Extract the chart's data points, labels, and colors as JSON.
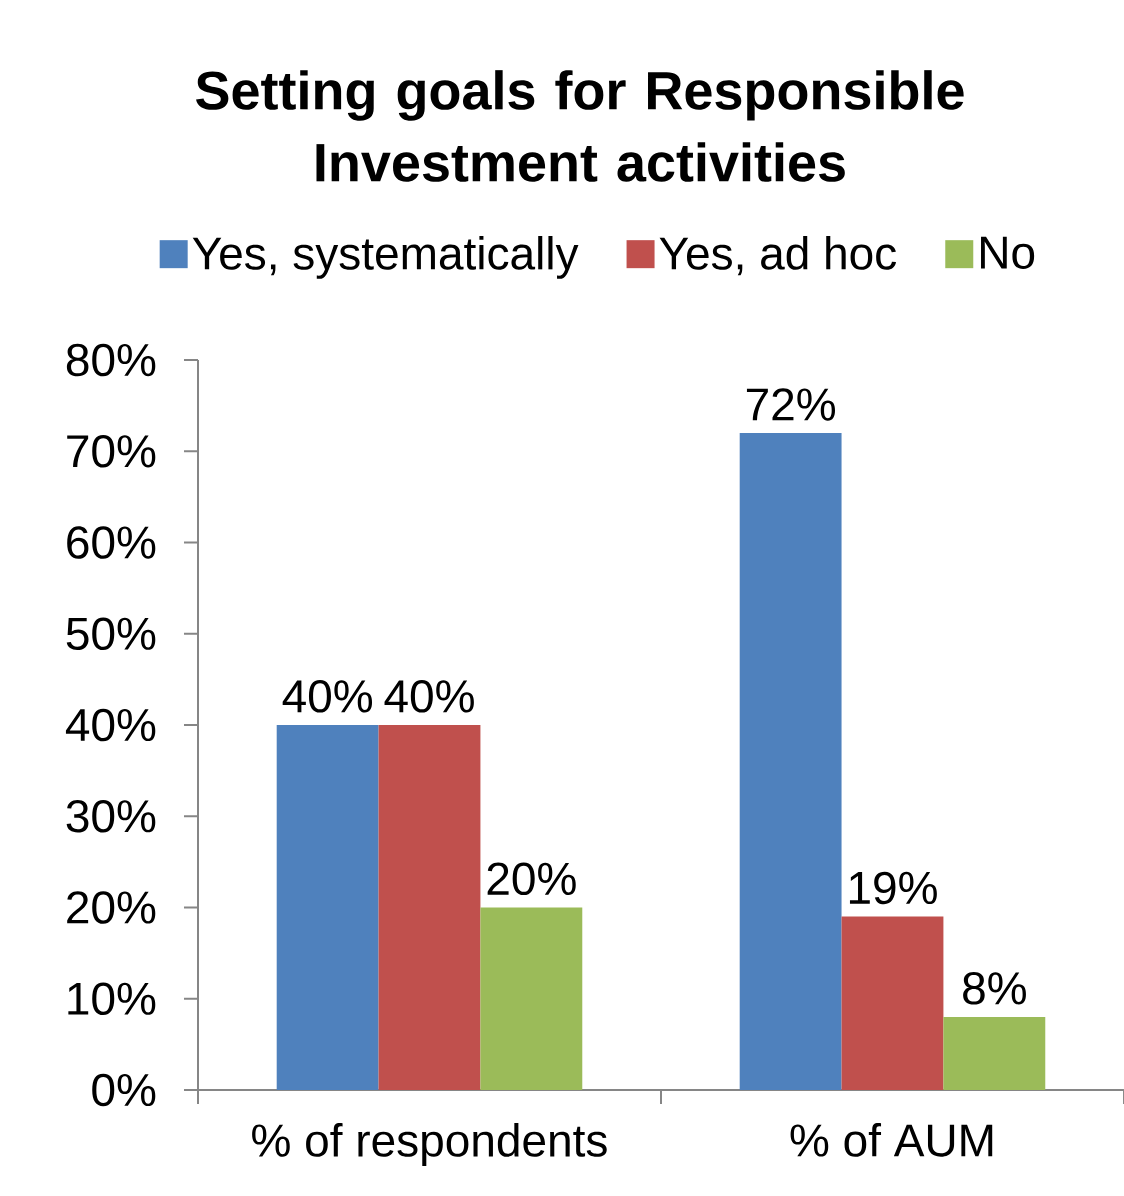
{
  "chart_data": {
    "type": "bar",
    "title": "Setting goals for Responsible Investment activities",
    "categories": [
      "% of respondents",
      "% of AUM"
    ],
    "series": [
      {
        "name": "Yes, systematically",
        "color": "#4f81bd",
        "values": [
          40,
          72
        ],
        "value_labels": [
          "40%",
          "72%"
        ]
      },
      {
        "name": "Yes, ad hoc",
        "color": "#c0504d",
        "values": [
          40,
          19
        ],
        "value_labels": [
          "40%",
          "19%"
        ]
      },
      {
        "name": "No",
        "color": "#9bbb59",
        "values": [
          20,
          8
        ],
        "value_labels": [
          "20%",
          "8%"
        ]
      }
    ],
    "ylim": [
      0,
      80
    ],
    "yticks": [
      {
        "value": 0,
        "label": "0%"
      },
      {
        "value": 10,
        "label": "10%"
      },
      {
        "value": 20,
        "label": "20%"
      },
      {
        "value": 30,
        "label": "30%"
      },
      {
        "value": 40,
        "label": "40%"
      },
      {
        "value": 50,
        "label": "50%"
      },
      {
        "value": 60,
        "label": "60%"
      },
      {
        "value": 70,
        "label": "70%"
      },
      {
        "value": 80,
        "label": "80%"
      }
    ],
    "legend": "top"
  }
}
